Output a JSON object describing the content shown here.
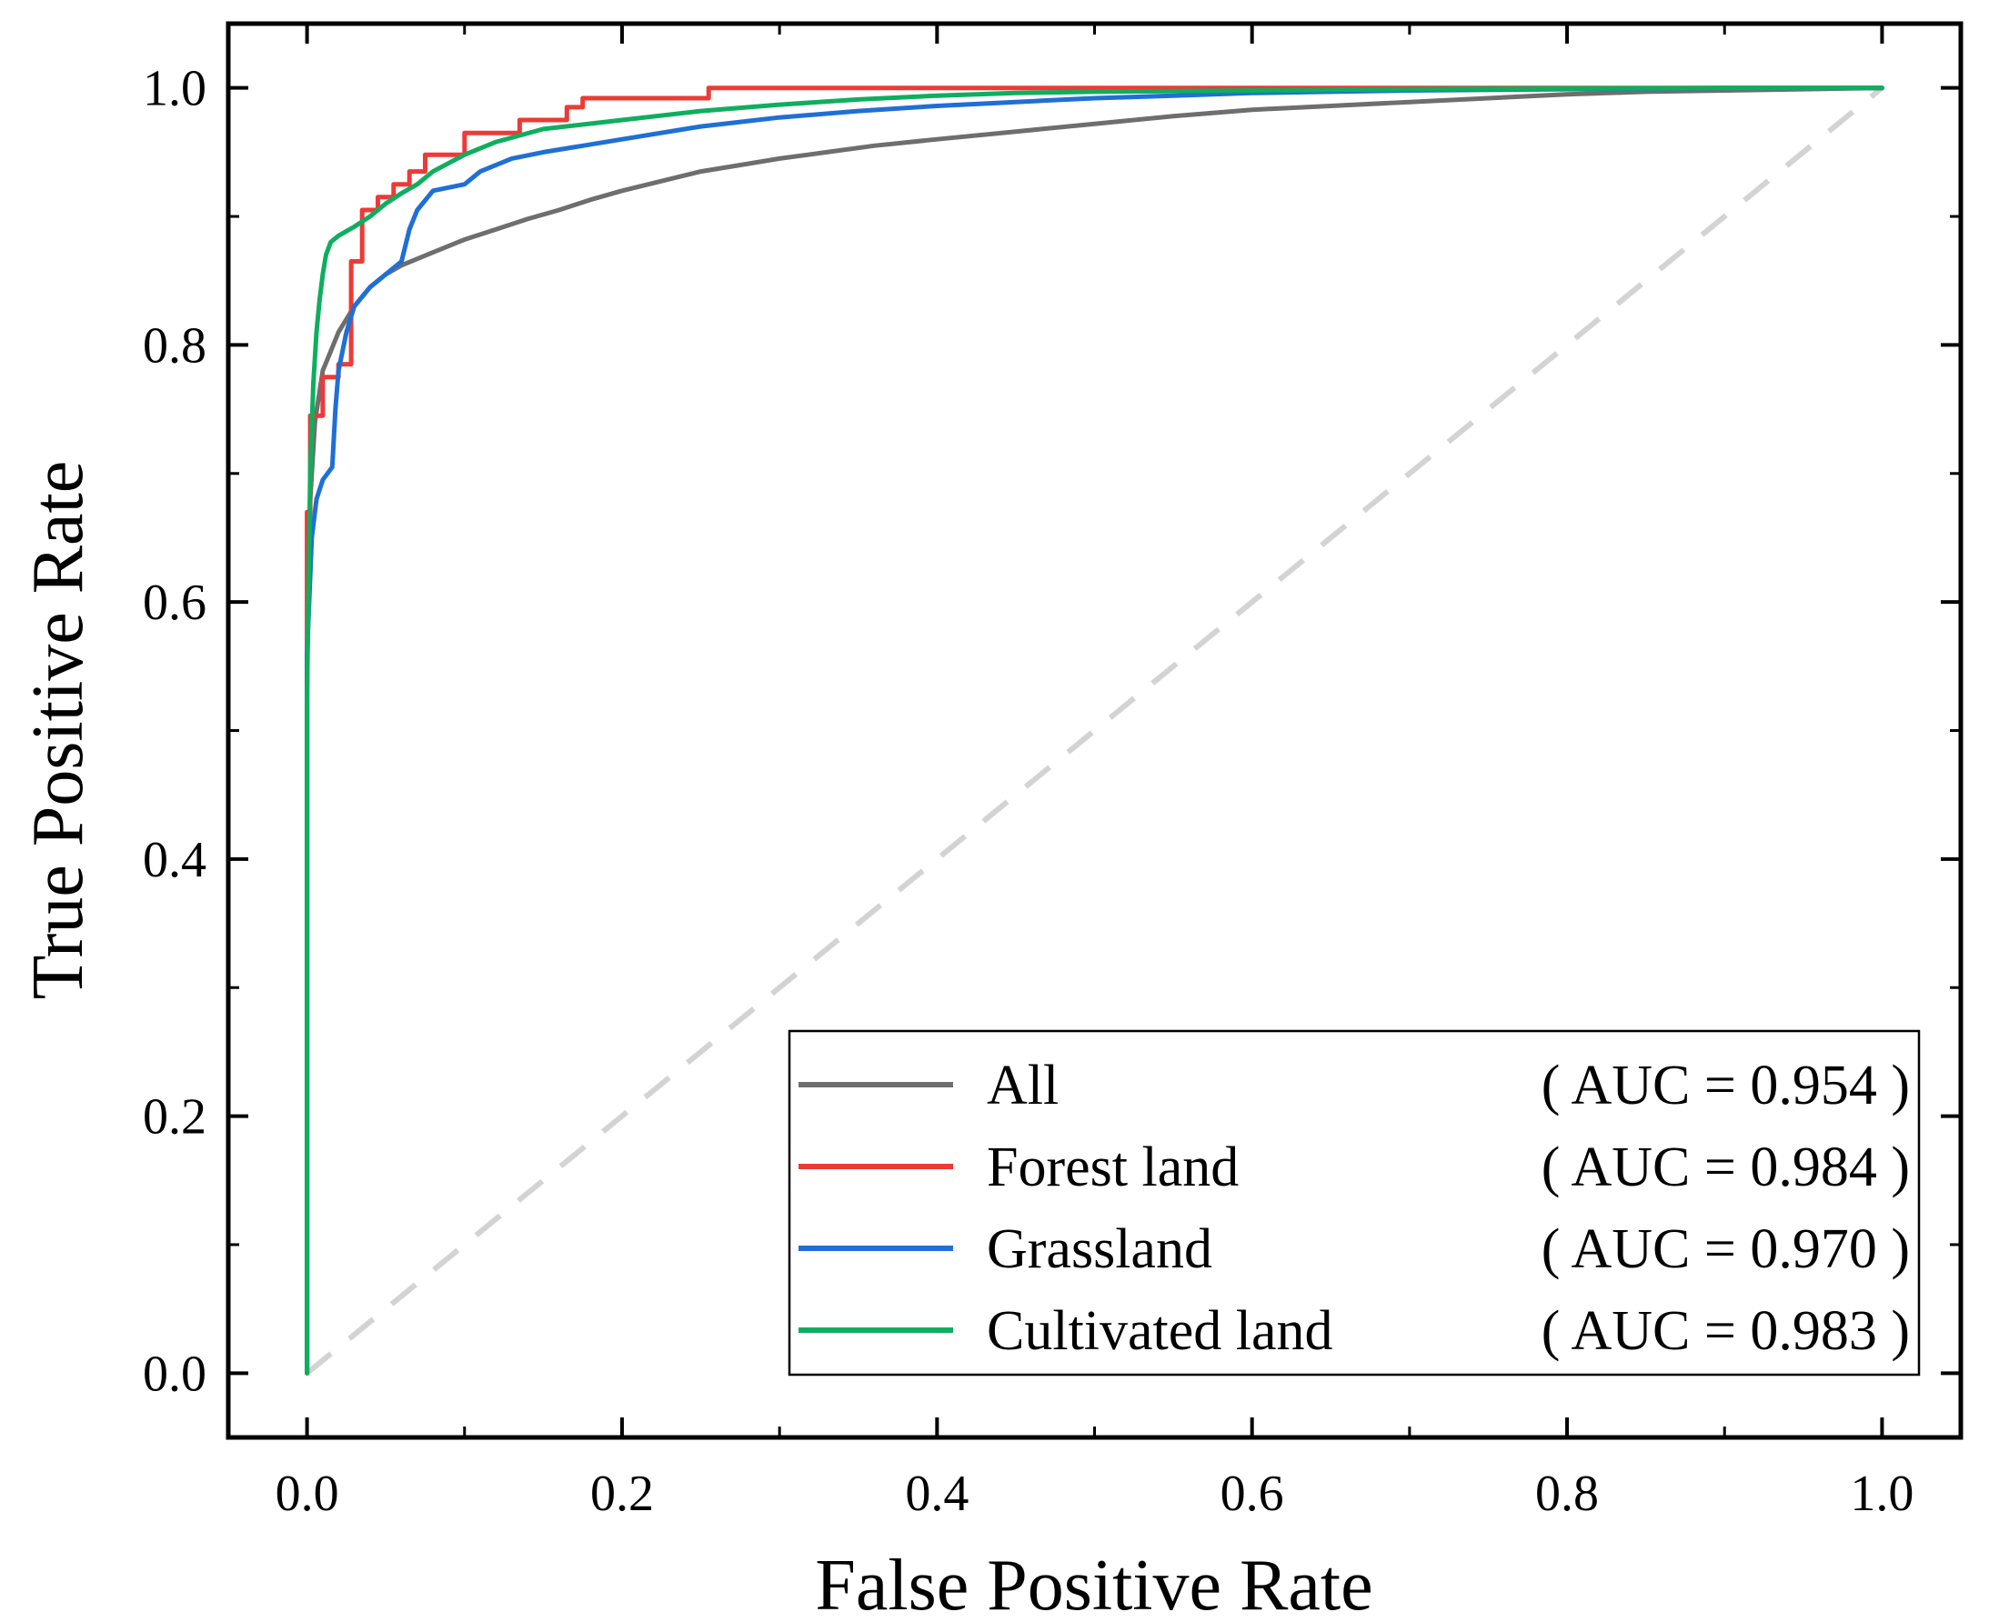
{
  "chart_data": {
    "type": "line",
    "title": "",
    "xlabel": "False Positive Rate",
    "ylabel": "True Positive Rate",
    "xlim": [
      -0.05,
      1.05
    ],
    "ylim": [
      -0.05,
      1.05
    ],
    "xticks": [
      "0.0",
      "0.2",
      "0.4",
      "0.6",
      "0.8",
      "1.0"
    ],
    "yticks": [
      "0.0",
      "0.2",
      "0.4",
      "0.6",
      "0.8",
      "1.0"
    ],
    "legend_position": "bottom-right",
    "reference_line": {
      "name": "chance",
      "x": [
        0,
        1
      ],
      "y": [
        0,
        1
      ],
      "color": "#d3d3d3",
      "style": "dashed"
    },
    "series": [
      {
        "name": "All",
        "auc_label": "( AUC = 0.954 )",
        "color": "#6e6e6e",
        "x": [
          0,
          0,
          0.002,
          0.005,
          0.01,
          0.015,
          0.02,
          0.03,
          0.04,
          0.05,
          0.06,
          0.07,
          0.08,
          0.1,
          0.12,
          0.14,
          0.16,
          0.18,
          0.2,
          0.22,
          0.25,
          0.28,
          0.3,
          0.33,
          0.36,
          0.4,
          0.45,
          0.5,
          0.55,
          0.6,
          0.65,
          0.7,
          0.75,
          0.8,
          0.85,
          0.9,
          0.95,
          1.0
        ],
        "y": [
          0,
          0.55,
          0.68,
          0.74,
          0.78,
          0.795,
          0.81,
          0.83,
          0.845,
          0.855,
          0.862,
          0.867,
          0.872,
          0.882,
          0.89,
          0.898,
          0.905,
          0.913,
          0.92,
          0.926,
          0.935,
          0.941,
          0.945,
          0.95,
          0.955,
          0.96,
          0.966,
          0.972,
          0.978,
          0.983,
          0.986,
          0.989,
          0.992,
          0.995,
          0.997,
          0.998,
          0.999,
          1.0
        ]
      },
      {
        "name": "Forest land",
        "auc_label": "( AUC = 0.984 )",
        "color": "#ee3a36",
        "x": [
          0,
          0,
          0.002,
          0.002,
          0.01,
          0.01,
          0.02,
          0.02,
          0.028,
          0.028,
          0.035,
          0.035,
          0.045,
          0.045,
          0.055,
          0.055,
          0.065,
          0.065,
          0.075,
          0.075,
          0.1,
          0.1,
          0.135,
          0.135,
          0.165,
          0.165,
          0.175,
          0.175,
          0.255,
          0.255,
          0.5,
          1.0
        ],
        "y": [
          0,
          0.67,
          0.67,
          0.745,
          0.745,
          0.775,
          0.775,
          0.785,
          0.785,
          0.865,
          0.865,
          0.905,
          0.905,
          0.915,
          0.915,
          0.925,
          0.925,
          0.935,
          0.935,
          0.948,
          0.948,
          0.965,
          0.965,
          0.975,
          0.975,
          0.985,
          0.985,
          0.992,
          0.992,
          1.0,
          1.0,
          1.0
        ]
      },
      {
        "name": "Grassland",
        "auc_label": "( AUC = 0.970 )",
        "color": "#1f6fd6",
        "x": [
          0,
          0,
          0.003,
          0.006,
          0.01,
          0.016,
          0.018,
          0.02,
          0.025,
          0.03,
          0.04,
          0.05,
          0.06,
          0.065,
          0.07,
          0.08,
          0.1,
          0.11,
          0.13,
          0.15,
          0.2,
          0.25,
          0.3,
          0.35,
          0.4,
          0.45,
          0.5,
          0.55,
          0.6,
          0.65,
          0.7,
          0.8,
          0.9,
          1.0
        ],
        "y": [
          0,
          0.56,
          0.65,
          0.68,
          0.695,
          0.705,
          0.75,
          0.78,
          0.81,
          0.83,
          0.845,
          0.855,
          0.865,
          0.89,
          0.905,
          0.92,
          0.925,
          0.935,
          0.945,
          0.95,
          0.96,
          0.97,
          0.977,
          0.982,
          0.986,
          0.989,
          0.992,
          0.994,
          0.996,
          0.997,
          0.998,
          0.999,
          1.0,
          1.0
        ]
      },
      {
        "name": "Cultivated land",
        "auc_label": "( AUC = 0.983 )",
        "color": "#0fae5f",
        "x": [
          0,
          0,
          0.002,
          0.004,
          0.006,
          0.008,
          0.01,
          0.012,
          0.015,
          0.02,
          0.03,
          0.04,
          0.05,
          0.06,
          0.07,
          0.08,
          0.1,
          0.12,
          0.15,
          0.2,
          0.25,
          0.3,
          0.35,
          0.4,
          0.45,
          0.5,
          0.6,
          0.7,
          0.8,
          0.9,
          1.0
        ],
        "y": [
          0,
          0.53,
          0.7,
          0.77,
          0.81,
          0.835,
          0.855,
          0.87,
          0.88,
          0.885,
          0.892,
          0.9,
          0.91,
          0.918,
          0.925,
          0.935,
          0.948,
          0.958,
          0.968,
          0.975,
          0.982,
          0.987,
          0.991,
          0.994,
          0.996,
          0.997,
          0.998,
          0.999,
          0.9995,
          1.0,
          1.0
        ]
      }
    ]
  }
}
